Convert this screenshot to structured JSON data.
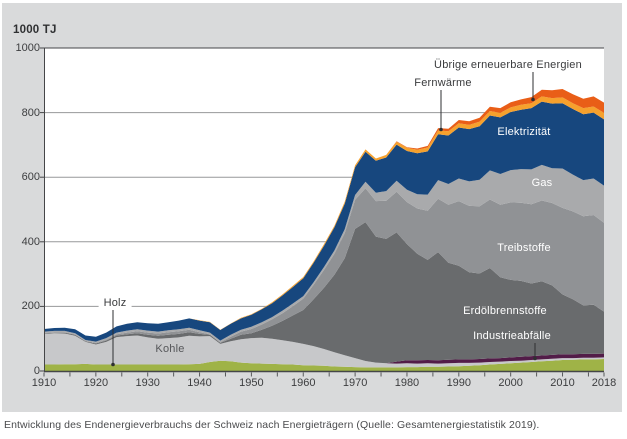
{
  "caption": "Entwicklung des Endenergieverbrauchs der Schweiz nach Energieträgern (Quelle: Gesamtenergiestatistik 2019).",
  "colors": {
    "panel_background": "#d9dadb",
    "plot_background": "#ffffff",
    "gridline": "#97989a",
    "axis": "#454648",
    "tick_label": "#3c3d3f",
    "callout_text": "#3a3b3d",
    "band_label_light": "#ffffff",
    "band_label_dark": "#56575a"
  },
  "chart_data": {
    "type": "area",
    "stacked": true,
    "title": "",
    "y_axis_title": "1000 TJ",
    "x_axis_title": "",
    "grid": true,
    "legend_position": "in-chart band labels with leader lines",
    "ylim": [
      0,
      1000
    ],
    "yticks": [
      0,
      200,
      400,
      600,
      800,
      1000
    ],
    "xticks": [
      1910,
      1920,
      1930,
      1940,
      1950,
      1960,
      1970,
      1980,
      1990,
      2000,
      2010,
      2018
    ],
    "minor_xtick_step_years": 5,
    "x": [
      1910,
      1912,
      1914,
      1916,
      1918,
      1920,
      1922,
      1924,
      1926,
      1928,
      1930,
      1932,
      1934,
      1936,
      1938,
      1940,
      1942,
      1944,
      1946,
      1948,
      1950,
      1952,
      1954,
      1956,
      1958,
      1960,
      1962,
      1964,
      1966,
      1968,
      1970,
      1972,
      1974,
      1976,
      1978,
      1980,
      1982,
      1984,
      1986,
      1988,
      1990,
      1992,
      1994,
      1996,
      1998,
      2000,
      2002,
      2004,
      2006,
      2008,
      2010,
      2012,
      2014,
      2016,
      2018
    ],
    "series": [
      {
        "name": "Holz",
        "color": "#9fb347",
        "values": [
          20,
          20,
          21,
          21,
          22,
          20,
          20,
          20,
          20,
          20,
          20,
          20,
          20,
          20,
          21,
          22,
          28,
          32,
          30,
          26,
          24,
          23,
          22,
          21,
          20,
          18,
          17,
          16,
          14,
          13,
          12,
          11,
          11,
          11,
          11,
          12,
          12,
          13,
          13,
          14,
          15,
          16,
          18,
          20,
          22,
          24,
          26,
          28,
          30,
          32,
          34,
          35,
          36,
          36,
          37
        ]
      },
      {
        "name": "Kohle",
        "color": "#c7c8ca",
        "values": [
          95,
          97,
          95,
          88,
          68,
          62,
          70,
          85,
          88,
          90,
          84,
          80,
          82,
          84,
          88,
          85,
          80,
          52,
          62,
          72,
          78,
          80,
          78,
          74,
          70,
          66,
          60,
          52,
          44,
          36,
          28,
          20,
          15,
          13,
          12,
          12,
          11,
          11,
          10,
          10,
          10,
          9,
          8,
          8,
          7,
          7,
          6,
          6,
          6,
          6,
          6,
          5,
          5,
          5,
          5
        ]
      },
      {
        "name": "Industrieabfälle",
        "color": "#521c48",
        "values": [
          0,
          0,
          0,
          0,
          0,
          0,
          0,
          0,
          0,
          0,
          0,
          0,
          0,
          0,
          0,
          0,
          0,
          0,
          0,
          0,
          0,
          0,
          0,
          0,
          0,
          0,
          0,
          0,
          0,
          0,
          0,
          0,
          0,
          0,
          6,
          9,
          10,
          10,
          10,
          11,
          11,
          11,
          11,
          11,
          11,
          11,
          12,
          12,
          12,
          12,
          12,
          12,
          12,
          12,
          12
        ]
      },
      {
        "name": "Erdölbrennstoffe",
        "color": "#696b6d",
        "values": [
          2,
          2,
          3,
          3,
          2,
          3,
          4,
          5,
          6,
          7,
          8,
          9,
          10,
          11,
          11,
          8,
          4,
          3,
          8,
          14,
          15,
          25,
          40,
          60,
          82,
          105,
          145,
          190,
          240,
          300,
          400,
          430,
          390,
          385,
          400,
          360,
          330,
          310,
          335,
          300,
          290,
          270,
          265,
          280,
          250,
          240,
          235,
          225,
          230,
          215,
          185,
          170,
          150,
          152,
          130
        ]
      },
      {
        "name": "Treibstoffe",
        "color": "#909295",
        "values": [
          1,
          1,
          1,
          1,
          1,
          2,
          3,
          4,
          5,
          6,
          7,
          7,
          8,
          8,
          8,
          5,
          2,
          2,
          6,
          10,
          13,
          16,
          20,
          24,
          29,
          35,
          45,
          55,
          65,
          78,
          90,
          105,
          110,
          118,
          126,
          130,
          140,
          152,
          165,
          180,
          200,
          205,
          208,
          212,
          225,
          240,
          242,
          245,
          250,
          255,
          268,
          272,
          276,
          278,
          275
        ]
      },
      {
        "name": "Gas",
        "color": "#a9aaac",
        "values": [
          4,
          4,
          4,
          4,
          3,
          4,
          5,
          5,
          6,
          6,
          6,
          6,
          6,
          6,
          6,
          6,
          5,
          5,
          6,
          6,
          7,
          7,
          7,
          8,
          8,
          8,
          8,
          9,
          10,
          12,
          15,
          20,
          26,
          30,
          34,
          38,
          44,
          50,
          58,
          64,
          70,
          76,
          82,
          90,
          95,
          100,
          104,
          108,
          110,
          108,
          122,
          114,
          112,
          113,
          115
        ]
      },
      {
        "name": "Elektrizität",
        "color": "#17477e",
        "values": [
          8,
          9,
          10,
          12,
          14,
          15,
          17,
          19,
          21,
          22,
          23,
          24,
          25,
          27,
          29,
          30,
          32,
          33,
          34,
          35,
          37,
          40,
          43,
          47,
          51,
          55,
          60,
          66,
          72,
          79,
          86,
          93,
          99,
          104,
          112,
          120,
          127,
          134,
          142,
          150,
          158,
          162,
          166,
          170,
          175,
          180,
          184,
          190,
          196,
          200,
          202,
          203,
          204,
          204,
          205
        ]
      },
      {
        "name": "Fernwärme",
        "color": "#f6a12d",
        "values": [
          0,
          0,
          0,
          0,
          0,
          0,
          0,
          0,
          0,
          0,
          0,
          0,
          0,
          0,
          0,
          1,
          1,
          1,
          1,
          2,
          2,
          2,
          3,
          3,
          4,
          4,
          4,
          5,
          5,
          6,
          6,
          7,
          7,
          8,
          9,
          10,
          11,
          12,
          12,
          13,
          13,
          13,
          14,
          14,
          14,
          14,
          15,
          15,
          16,
          17,
          18,
          18,
          19,
          19,
          20
        ]
      },
      {
        "name": "Übrige erneuerbare Energien",
        "color": "#e95e17",
        "values": [
          0,
          0,
          0,
          0,
          0,
          0,
          0,
          0,
          0,
          0,
          0,
          0,
          0,
          0,
          0,
          0,
          0,
          0,
          0,
          0,
          0,
          0,
          0,
          0,
          0,
          0,
          0,
          0,
          0,
          0,
          0,
          0,
          0,
          0,
          1,
          2,
          4,
          5,
          7,
          8,
          10,
          11,
          12,
          13,
          15,
          16,
          17,
          19,
          21,
          24,
          26,
          28,
          29,
          31,
          32
        ]
      }
    ],
    "annotations": [
      {
        "label": "Holz",
        "points_to_series": "Holz",
        "year": 1923
      },
      {
        "label": "Fernwärme",
        "points_to_series": "Fernwärme",
        "year": 1987
      },
      {
        "label": "Übrige erneuerbare Energien",
        "points_to_series": "Übrige erneuerbare Energien",
        "year": 2004
      },
      {
        "label": "Industrieabfälle",
        "points_to_series": "Industrieabfälle",
        "year": 2005
      }
    ]
  }
}
